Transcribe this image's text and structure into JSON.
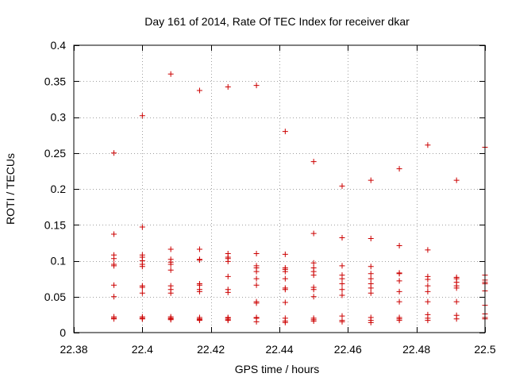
{
  "chart_data": {
    "type": "scatter",
    "title": "Day 161 of 2014, Rate Of TEC Index for receiver dkar",
    "xlabel": "GPS time / hours",
    "ylabel": "ROTI / TECUs",
    "xlim": [
      22.38,
      22.5
    ],
    "ylim": [
      0,
      0.4
    ],
    "xticks": [
      22.38,
      22.4,
      22.42,
      22.44,
      22.46,
      22.48,
      22.5
    ],
    "xtick_labels": [
      "22.38",
      "22.4",
      "22.42",
      "22.44",
      "22.46",
      "22.48",
      "22.5"
    ],
    "yticks": [
      0,
      0.05,
      0.1,
      0.15,
      0.2,
      0.25,
      0.3,
      0.35,
      0.4
    ],
    "ytick_labels": [
      "0",
      "0.05",
      "0.1",
      "0.15",
      "0.2",
      "0.25",
      "0.3",
      "0.35",
      "0.4"
    ],
    "grid": true,
    "marker": "+",
    "marker_color": "#cc0000",
    "grid_color": "#a0a0a0",
    "series": [
      {
        "name": "ROTI",
        "points": [
          [
            22.3917,
            0.25
          ],
          [
            22.3917,
            0.137
          ],
          [
            22.3917,
            0.108
          ],
          [
            22.3917,
            0.103
          ],
          [
            22.3917,
            0.095
          ],
          [
            22.3917,
            0.093
          ],
          [
            22.3917,
            0.066
          ],
          [
            22.3917,
            0.05
          ],
          [
            22.3917,
            0.022
          ],
          [
            22.3917,
            0.02
          ],
          [
            22.3917,
            0.019
          ],
          [
            22.4,
            0.302
          ],
          [
            22.4,
            0.147
          ],
          [
            22.4,
            0.108
          ],
          [
            22.4,
            0.105
          ],
          [
            22.4,
            0.1
          ],
          [
            22.4,
            0.095
          ],
          [
            22.4,
            0.092
          ],
          [
            22.4,
            0.065
          ],
          [
            22.4,
            0.063
          ],
          [
            22.4,
            0.055
          ],
          [
            22.4,
            0.022
          ],
          [
            22.4,
            0.02
          ],
          [
            22.4,
            0.019
          ],
          [
            22.4083,
            0.36
          ],
          [
            22.4083,
            0.116
          ],
          [
            22.4083,
            0.102
          ],
          [
            22.4083,
            0.098
          ],
          [
            22.4083,
            0.095
          ],
          [
            22.4083,
            0.087
          ],
          [
            22.4083,
            0.065
          ],
          [
            22.4083,
            0.06
          ],
          [
            22.4083,
            0.055
          ],
          [
            22.4083,
            0.022
          ],
          [
            22.4083,
            0.02
          ],
          [
            22.4083,
            0.019
          ],
          [
            22.4083,
            0.018
          ],
          [
            22.4167,
            0.337
          ],
          [
            22.4167,
            0.116
          ],
          [
            22.4167,
            0.102
          ],
          [
            22.4167,
            0.101
          ],
          [
            22.4167,
            0.068
          ],
          [
            22.4167,
            0.066
          ],
          [
            22.4167,
            0.06
          ],
          [
            22.4167,
            0.057
          ],
          [
            22.4167,
            0.021
          ],
          [
            22.4167,
            0.019
          ],
          [
            22.4167,
            0.018
          ],
          [
            22.4167,
            0.017
          ],
          [
            22.425,
            0.342
          ],
          [
            22.425,
            0.11
          ],
          [
            22.425,
            0.105
          ],
          [
            22.425,
            0.103
          ],
          [
            22.425,
            0.099
          ],
          [
            22.425,
            0.078
          ],
          [
            22.425,
            0.06
          ],
          [
            22.425,
            0.056
          ],
          [
            22.425,
            0.021
          ],
          [
            22.425,
            0.02
          ],
          [
            22.425,
            0.018
          ],
          [
            22.425,
            0.017
          ],
          [
            22.4333,
            0.344
          ],
          [
            22.4333,
            0.11
          ],
          [
            22.4333,
            0.093
          ],
          [
            22.4333,
            0.09
          ],
          [
            22.4333,
            0.085
          ],
          [
            22.4333,
            0.075
          ],
          [
            22.4333,
            0.066
          ],
          [
            22.4333,
            0.043
          ],
          [
            22.4333,
            0.041
          ],
          [
            22.4333,
            0.021
          ],
          [
            22.4333,
            0.02
          ],
          [
            22.4333,
            0.015
          ],
          [
            22.4417,
            0.28
          ],
          [
            22.4417,
            0.109
          ],
          [
            22.4417,
            0.09
          ],
          [
            22.4417,
            0.088
          ],
          [
            22.4417,
            0.085
          ],
          [
            22.4417,
            0.075
          ],
          [
            22.4417,
            0.062
          ],
          [
            22.4417,
            0.06
          ],
          [
            22.4417,
            0.042
          ],
          [
            22.4417,
            0.02
          ],
          [
            22.4417,
            0.016
          ],
          [
            22.4417,
            0.014
          ],
          [
            22.45,
            0.238
          ],
          [
            22.45,
            0.138
          ],
          [
            22.45,
            0.097
          ],
          [
            22.45,
            0.09
          ],
          [
            22.45,
            0.085
          ],
          [
            22.45,
            0.08
          ],
          [
            22.45,
            0.063
          ],
          [
            22.45,
            0.06
          ],
          [
            22.45,
            0.05
          ],
          [
            22.45,
            0.02
          ],
          [
            22.45,
            0.018
          ],
          [
            22.45,
            0.016
          ],
          [
            22.4583,
            0.204
          ],
          [
            22.4583,
            0.132
          ],
          [
            22.4583,
            0.093
          ],
          [
            22.4583,
            0.08
          ],
          [
            22.4583,
            0.075
          ],
          [
            22.4583,
            0.068
          ],
          [
            22.4583,
            0.06
          ],
          [
            22.4583,
            0.052
          ],
          [
            22.4583,
            0.023
          ],
          [
            22.4583,
            0.017
          ],
          [
            22.4583,
            0.015
          ],
          [
            22.4667,
            0.212
          ],
          [
            22.4667,
            0.131
          ],
          [
            22.4667,
            0.092
          ],
          [
            22.4667,
            0.082
          ],
          [
            22.4667,
            0.075
          ],
          [
            22.4667,
            0.068
          ],
          [
            22.4667,
            0.062
          ],
          [
            22.4667,
            0.055
          ],
          [
            22.4667,
            0.021
          ],
          [
            22.4667,
            0.017
          ],
          [
            22.4667,
            0.014
          ],
          [
            22.475,
            0.228
          ],
          [
            22.475,
            0.121
          ],
          [
            22.475,
            0.083
          ],
          [
            22.475,
            0.082
          ],
          [
            22.475,
            0.072
          ],
          [
            22.475,
            0.057
          ],
          [
            22.475,
            0.043
          ],
          [
            22.475,
            0.021
          ],
          [
            22.475,
            0.019
          ],
          [
            22.475,
            0.017
          ],
          [
            22.4833,
            0.261
          ],
          [
            22.4833,
            0.115
          ],
          [
            22.4833,
            0.078
          ],
          [
            22.4833,
            0.074
          ],
          [
            22.4833,
            0.065
          ],
          [
            22.4833,
            0.057
          ],
          [
            22.4833,
            0.043
          ],
          [
            22.4833,
            0.025
          ],
          [
            22.4833,
            0.02
          ],
          [
            22.4833,
            0.017
          ],
          [
            22.4917,
            0.212
          ],
          [
            22.4917,
            0.077
          ],
          [
            22.4917,
            0.075
          ],
          [
            22.4917,
            0.07
          ],
          [
            22.4917,
            0.065
          ],
          [
            22.4917,
            0.062
          ],
          [
            22.4917,
            0.043
          ],
          [
            22.4917,
            0.024
          ],
          [
            22.4917,
            0.019
          ],
          [
            22.5,
            0.258
          ],
          [
            22.5,
            0.08
          ],
          [
            22.5,
            0.073
          ],
          [
            22.5,
            0.07
          ],
          [
            22.5,
            0.068
          ],
          [
            22.5,
            0.058
          ],
          [
            22.5,
            0.038
          ],
          [
            22.5,
            0.026
          ],
          [
            22.5,
            0.021
          ],
          [
            22.5,
            0.019
          ]
        ]
      }
    ]
  }
}
